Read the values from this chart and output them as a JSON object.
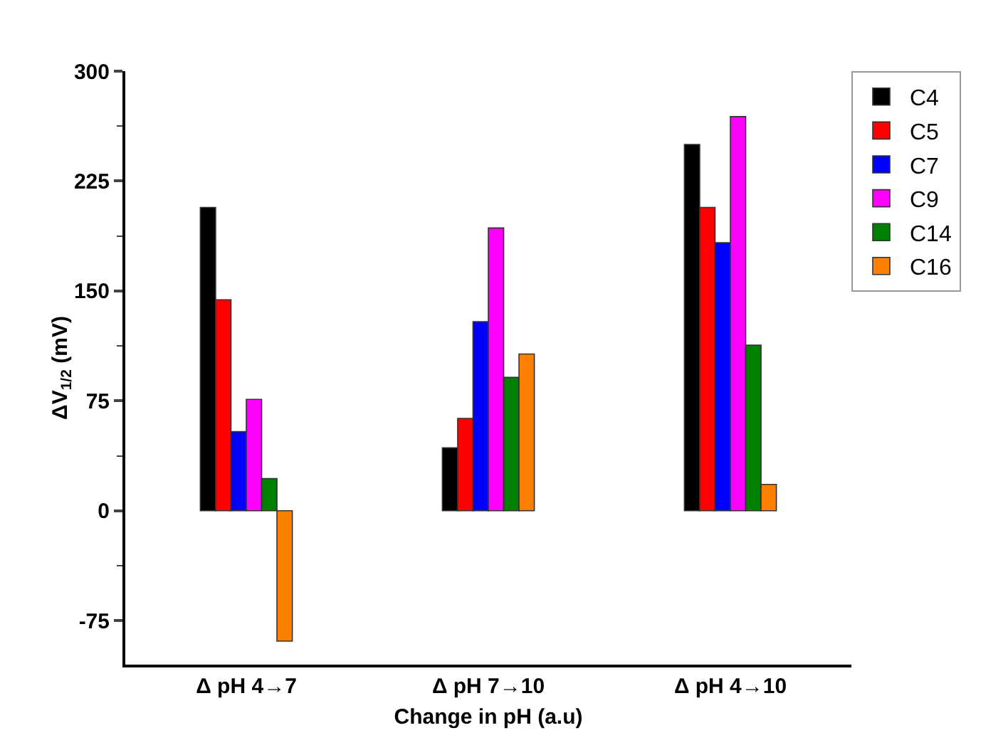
{
  "chart_data": {
    "type": "bar",
    "xlabel": "Change in pH (a.u)",
    "ylabel": "ΔV$_{1/2}$ (mV)",
    "categories": [
      "Δ pH 4→7",
      "Δ pH 7→10",
      "Δ pH 4→10"
    ],
    "series": [
      {
        "name": "C4",
        "color": "#000000",
        "values": [
          207,
          43,
          250
        ]
      },
      {
        "name": "C5",
        "color": "#ff0000",
        "values": [
          144,
          63,
          207
        ]
      },
      {
        "name": "C7",
        "color": "#0000ff",
        "values": [
          54,
          129,
          183
        ]
      },
      {
        "name": "C9",
        "color": "#ff00ff",
        "values": [
          76,
          193,
          269
        ]
      },
      {
        "name": "C14",
        "color": "#008000",
        "values": [
          22,
          91,
          113
        ]
      },
      {
        "name": "C16",
        "color": "#ff8000",
        "values": [
          -89,
          107,
          18
        ]
      }
    ],
    "ylim": [
      -105,
      300
    ],
    "yticks": [
      -75,
      0,
      75,
      150,
      225,
      300
    ],
    "grid": false,
    "legend": "top right"
  }
}
